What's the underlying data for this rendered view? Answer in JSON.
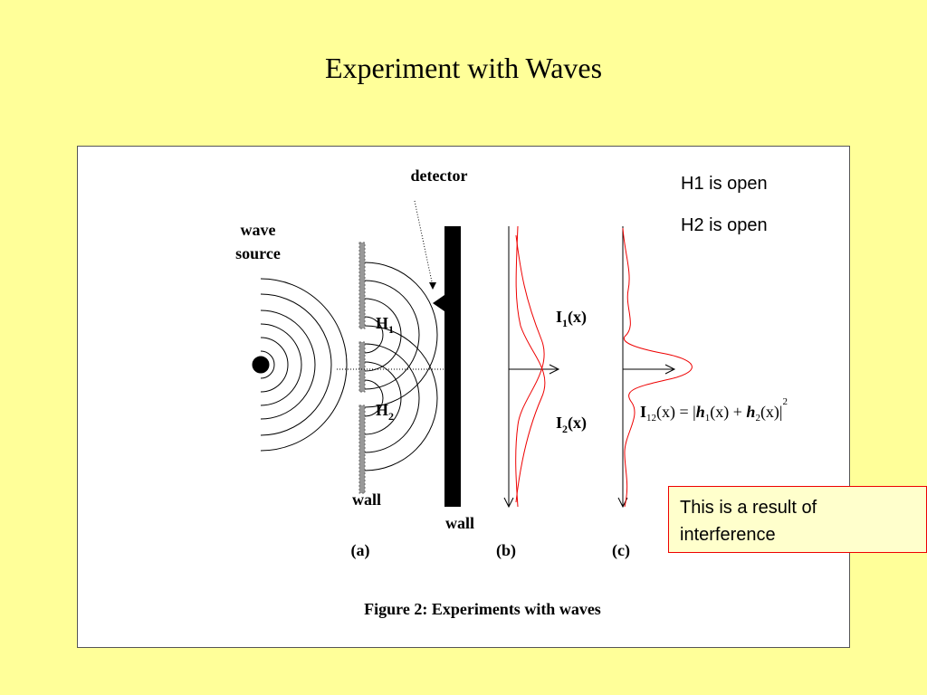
{
  "title": "Experiment with Waves",
  "figure": {
    "detector": "detector",
    "wave_source": [
      "wave",
      "source"
    ],
    "h1": [
      "H",
      "1"
    ],
    "h2": [
      "H",
      "2"
    ],
    "wall_a": "wall",
    "wall_b": "wall",
    "i1": [
      "I",
      "1",
      "(x)"
    ],
    "i2": [
      "I",
      "2",
      "(x)"
    ],
    "panels": [
      "(a)",
      "(b)",
      "(c)"
    ],
    "formula": [
      "I",
      "12",
      "(x) = |",
      "h",
      "1",
      "(x) + ",
      "h",
      "2",
      "(x)|",
      "2"
    ],
    "caption": "Figure 2: Experiments with waves"
  },
  "notes": [
    "H1 is open",
    "H2 is open"
  ],
  "callout": [
    "This is a result of",
    "interference"
  ]
}
